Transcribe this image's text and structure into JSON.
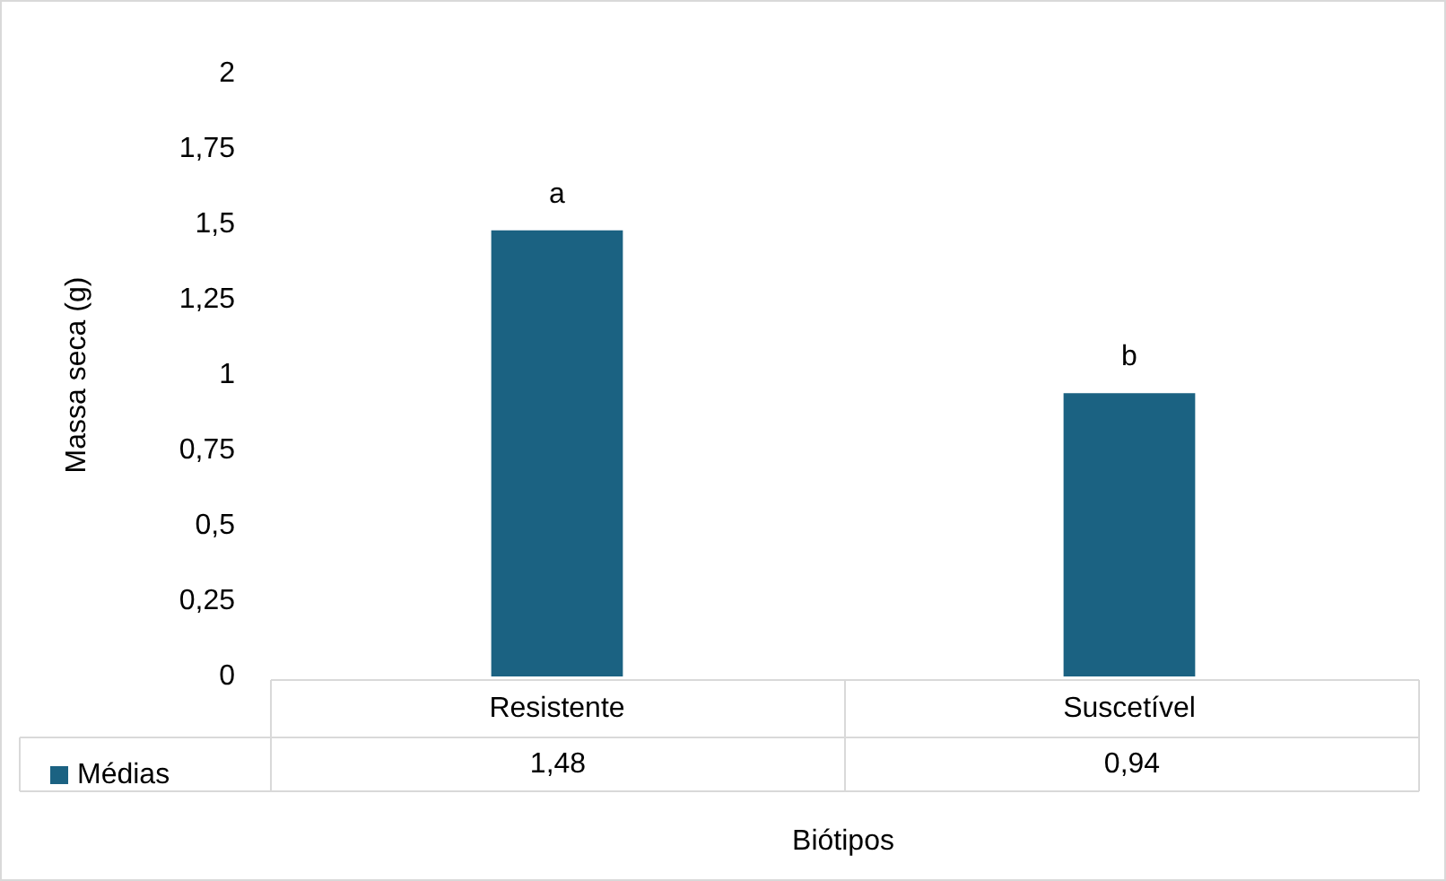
{
  "chart_data": {
    "type": "bar",
    "xlabel": "Biótipos",
    "ylabel": "Massa seca (g)",
    "categories": [
      "Resistente",
      "Suscetível"
    ],
    "series": [
      {
        "name": "Médias",
        "color": "#1b6282",
        "values": [
          1.48,
          0.94
        ],
        "value_labels": [
          "1,48",
          "0,94"
        ]
      }
    ],
    "ylim": [
      0,
      2
    ],
    "yticks": [
      0,
      {
        "value": 0.25,
        "label": "0,25"
      },
      {
        "value": 0.5,
        "label": "0,5"
      },
      {
        "value": 0.75,
        "label": "0,75"
      },
      1,
      {
        "value": 1.25,
        "label": "1,25"
      },
      {
        "value": 1.5,
        "label": "1,5"
      },
      {
        "value": 1.75,
        "label": "1,75"
      },
      2
    ],
    "annotations": [
      {
        "text": "a",
        "x": "Resistente",
        "y": 1.48
      },
      {
        "text": "b",
        "x": "Suscetível",
        "y": 0.94
      }
    ],
    "legend": "bottom left",
    "grid": false
  }
}
